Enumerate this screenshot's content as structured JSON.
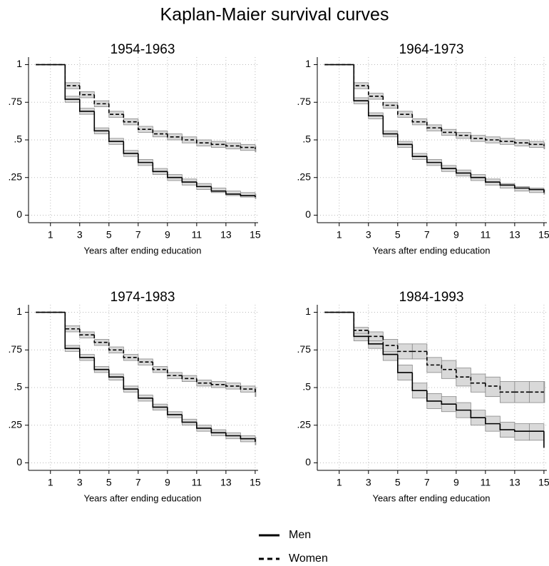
{
  "title": "Kaplan-Maier survival curves",
  "chart_data": [
    {
      "type": "step",
      "title": "1954-1963",
      "x_label": "Years after ending education",
      "x": [
        0,
        2,
        3,
        4,
        5,
        6,
        7,
        8,
        9,
        10,
        11,
        12,
        13,
        14,
        15
      ],
      "series": [
        {
          "name": "Men",
          "color": "#000000",
          "linestyle": "solid",
          "values": [
            1,
            0.77,
            0.69,
            0.56,
            0.49,
            0.41,
            0.35,
            0.29,
            0.25,
            0.22,
            0.19,
            0.16,
            0.14,
            0.13,
            0.12
          ],
          "ci_lower": [
            1,
            0.75,
            0.67,
            0.54,
            0.47,
            0.39,
            0.33,
            0.27,
            0.23,
            0.2,
            0.17,
            0.15,
            0.13,
            0.12,
            0.11
          ],
          "ci_upper": [
            1,
            0.79,
            0.71,
            0.58,
            0.51,
            0.43,
            0.37,
            0.31,
            0.27,
            0.24,
            0.21,
            0.18,
            0.16,
            0.15,
            0.14
          ]
        },
        {
          "name": "Women",
          "color": "#000000",
          "linestyle": "dashed",
          "values": [
            1,
            0.86,
            0.8,
            0.74,
            0.67,
            0.62,
            0.57,
            0.54,
            0.52,
            0.5,
            0.48,
            0.47,
            0.46,
            0.45,
            0.44
          ],
          "ci_lower": [
            1,
            0.84,
            0.78,
            0.72,
            0.65,
            0.6,
            0.55,
            0.52,
            0.5,
            0.48,
            0.46,
            0.45,
            0.44,
            0.43,
            0.42
          ],
          "ci_upper": [
            1,
            0.88,
            0.82,
            0.76,
            0.69,
            0.64,
            0.59,
            0.56,
            0.54,
            0.52,
            0.5,
            0.49,
            0.48,
            0.47,
            0.46
          ]
        }
      ],
      "ci_color": "#d9d9d9",
      "xlim": [
        -0.5,
        15.2
      ],
      "ylim": [
        -0.05,
        1.05
      ],
      "xticks": [
        1,
        3,
        5,
        7,
        9,
        11,
        13,
        15
      ],
      "yticks": [
        0,
        {
          "value": 0.25,
          "label": ".25"
        },
        {
          "value": 0.5,
          "label": ".5"
        },
        {
          "value": 0.75,
          "label": ".75"
        },
        1
      ],
      "grid": true
    },
    {
      "type": "step",
      "title": "1964-1973",
      "x_label": "Years after ending education",
      "x": [
        0,
        2,
        3,
        4,
        5,
        6,
        7,
        8,
        9,
        10,
        11,
        12,
        13,
        14,
        15
      ],
      "series": [
        {
          "name": "Men",
          "color": "#000000",
          "linestyle": "solid",
          "values": [
            1,
            0.76,
            0.66,
            0.54,
            0.47,
            0.39,
            0.35,
            0.31,
            0.28,
            0.25,
            0.22,
            0.2,
            0.18,
            0.17,
            0.15
          ],
          "ci_lower": [
            1,
            0.74,
            0.64,
            0.52,
            0.45,
            0.37,
            0.33,
            0.29,
            0.26,
            0.23,
            0.2,
            0.18,
            0.16,
            0.15,
            0.14
          ],
          "ci_upper": [
            1,
            0.78,
            0.68,
            0.56,
            0.49,
            0.41,
            0.37,
            0.33,
            0.3,
            0.27,
            0.24,
            0.21,
            0.19,
            0.18,
            0.17
          ]
        },
        {
          "name": "Women",
          "color": "#000000",
          "linestyle": "dashed",
          "values": [
            1,
            0.86,
            0.79,
            0.73,
            0.67,
            0.62,
            0.58,
            0.55,
            0.53,
            0.51,
            0.5,
            0.49,
            0.48,
            0.47,
            0.46
          ],
          "ci_lower": [
            1,
            0.84,
            0.77,
            0.71,
            0.65,
            0.6,
            0.56,
            0.53,
            0.51,
            0.49,
            0.48,
            0.47,
            0.46,
            0.45,
            0.44
          ],
          "ci_upper": [
            1,
            0.88,
            0.81,
            0.75,
            0.69,
            0.64,
            0.6,
            0.57,
            0.55,
            0.53,
            0.52,
            0.51,
            0.5,
            0.49,
            0.48
          ]
        }
      ],
      "ci_color": "#d9d9d9",
      "xlim": [
        -0.5,
        15.2
      ],
      "ylim": [
        -0.05,
        1.05
      ],
      "xticks": [
        1,
        3,
        5,
        7,
        9,
        11,
        13,
        15
      ],
      "yticks": [
        0,
        {
          "value": 0.25,
          "label": ".25"
        },
        {
          "value": 0.5,
          "label": ".5"
        },
        {
          "value": 0.75,
          "label": ".75"
        },
        1
      ],
      "grid": true
    },
    {
      "type": "step",
      "title": "1974-1983",
      "x_label": "Years after ending education",
      "x": [
        0,
        2,
        3,
        4,
        5,
        6,
        7,
        8,
        9,
        10,
        11,
        12,
        13,
        14,
        15
      ],
      "series": [
        {
          "name": "Men",
          "color": "#000000",
          "linestyle": "solid",
          "values": [
            1,
            0.76,
            0.7,
            0.62,
            0.57,
            0.49,
            0.43,
            0.37,
            0.32,
            0.27,
            0.23,
            0.2,
            0.18,
            0.16,
            0.14
          ],
          "ci_lower": [
            1,
            0.74,
            0.68,
            0.6,
            0.55,
            0.47,
            0.41,
            0.35,
            0.3,
            0.25,
            0.21,
            0.18,
            0.16,
            0.14,
            0.12
          ],
          "ci_upper": [
            1,
            0.78,
            0.72,
            0.64,
            0.59,
            0.51,
            0.45,
            0.39,
            0.34,
            0.29,
            0.25,
            0.22,
            0.2,
            0.18,
            0.17
          ]
        },
        {
          "name": "Women",
          "color": "#000000",
          "linestyle": "dashed",
          "values": [
            1,
            0.89,
            0.85,
            0.8,
            0.75,
            0.7,
            0.67,
            0.62,
            0.58,
            0.56,
            0.53,
            0.52,
            0.51,
            0.49,
            0.47
          ],
          "ci_lower": [
            1,
            0.87,
            0.83,
            0.78,
            0.73,
            0.68,
            0.65,
            0.6,
            0.56,
            0.54,
            0.51,
            0.5,
            0.49,
            0.47,
            0.44
          ],
          "ci_upper": [
            1,
            0.91,
            0.87,
            0.82,
            0.77,
            0.72,
            0.69,
            0.64,
            0.6,
            0.58,
            0.55,
            0.54,
            0.53,
            0.51,
            0.5
          ]
        }
      ],
      "ci_color": "#d9d9d9",
      "xlim": [
        -0.5,
        15.2
      ],
      "ylim": [
        -0.05,
        1.05
      ],
      "xticks": [
        1,
        3,
        5,
        7,
        9,
        11,
        13,
        15
      ],
      "yticks": [
        0,
        {
          "value": 0.25,
          "label": ".25"
        },
        {
          "value": 0.5,
          "label": ".5"
        },
        {
          "value": 0.75,
          "label": ".75"
        },
        1
      ],
      "grid": true
    },
    {
      "type": "step",
      "title": "1984-1993",
      "x_label": "Years after ending education",
      "x": [
        0,
        2,
        3,
        4,
        5,
        6,
        7,
        8,
        9,
        10,
        11,
        12,
        13,
        14,
        15
      ],
      "series": [
        {
          "name": "Men",
          "color": "#000000",
          "linestyle": "solid",
          "values": [
            1,
            0.84,
            0.79,
            0.72,
            0.6,
            0.48,
            0.41,
            0.39,
            0.35,
            0.3,
            0.26,
            0.22,
            0.21,
            0.21,
            0.1
          ],
          "ci_lower": [
            1,
            0.81,
            0.76,
            0.68,
            0.55,
            0.43,
            0.36,
            0.34,
            0.3,
            0.25,
            0.21,
            0.17,
            0.15,
            0.15,
            0.1
          ],
          "ci_upper": [
            1,
            0.87,
            0.82,
            0.76,
            0.65,
            0.53,
            0.46,
            0.44,
            0.4,
            0.35,
            0.31,
            0.27,
            0.26,
            0.26,
            0.1
          ]
        },
        {
          "name": "Women",
          "color": "#000000",
          "linestyle": "dashed",
          "values": [
            1,
            0.88,
            0.84,
            0.78,
            0.74,
            0.74,
            0.65,
            0.62,
            0.57,
            0.53,
            0.51,
            0.47,
            0.47,
            0.47,
            0.47
          ],
          "ci_lower": [
            1,
            0.86,
            0.81,
            0.74,
            0.69,
            0.69,
            0.6,
            0.56,
            0.51,
            0.47,
            0.44,
            0.4,
            0.4,
            0.4,
            0.4
          ],
          "ci_upper": [
            1,
            0.9,
            0.87,
            0.82,
            0.79,
            0.79,
            0.7,
            0.68,
            0.63,
            0.59,
            0.57,
            0.54,
            0.54,
            0.54,
            0.54
          ]
        }
      ],
      "ci_color": "#d9d9d9",
      "xlim": [
        -0.5,
        15.2
      ],
      "ylim": [
        -0.05,
        1.05
      ],
      "xticks": [
        1,
        3,
        5,
        7,
        9,
        11,
        13,
        15
      ],
      "yticks": [
        0,
        {
          "value": 0.25,
          "label": ".25"
        },
        {
          "value": 0.5,
          "label": ".5"
        },
        {
          "value": 0.75,
          "label": ".75"
        },
        1
      ],
      "grid": true
    }
  ]
}
